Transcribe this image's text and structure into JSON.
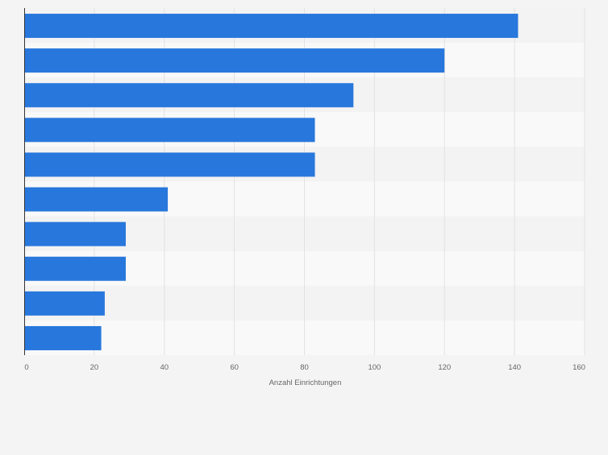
{
  "chart_data": {
    "type": "bar",
    "orientation": "horizontal",
    "categories": [
      "",
      "",
      "",
      "",
      "",
      "",
      "",
      "",
      "",
      ""
    ],
    "values": [
      141,
      120,
      94,
      83,
      83,
      41,
      29,
      29,
      23,
      22
    ],
    "title": "",
    "xlabel": "Anzahl Einrichtungen",
    "ylabel": "",
    "xlim": [
      0,
      160
    ],
    "xticks": [
      0,
      20,
      40,
      60,
      80,
      100,
      120,
      140,
      160
    ],
    "grid": true,
    "legend": "none"
  },
  "colors": {
    "bar": "#2877dc",
    "background": "#f4f4f4",
    "band_light": "#f9f9f9",
    "band_dark": "#f3f3f3",
    "grid": "#e2e2e2",
    "axis": "#333333",
    "tick_text": "#666666"
  }
}
